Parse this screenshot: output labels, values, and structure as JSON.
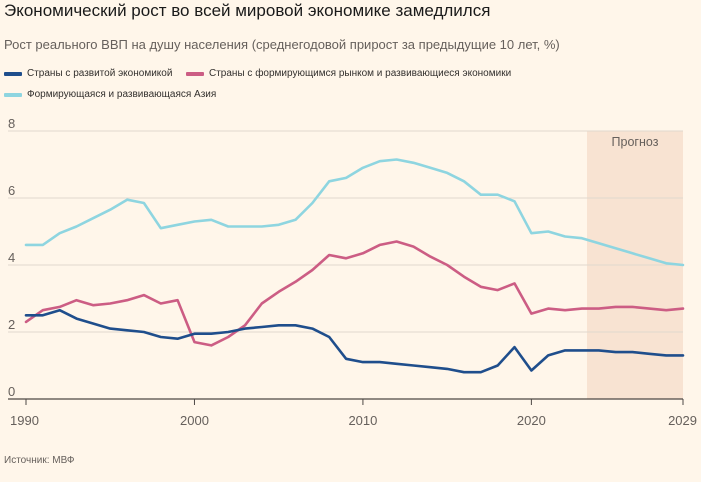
{
  "title": "Экономический рост во всей мировой экономике замедлился",
  "subtitle": "Рост реального ВВП на душу населения (среднегодовой прирост за предыдущие 10 лет, %)",
  "source": "Источник: МВФ",
  "colors": {
    "advanced": "#1f4e8c",
    "emerging": "#cc5d84",
    "asia": "#8ed5e0",
    "forecast_band": "#f8e3d2",
    "grid": "#e1d8cf"
  },
  "chart_data": {
    "type": "line",
    "title": "Экономический рост во всей мировой экономике замедлился",
    "ylabel": "Рост реального ВВП на душу населения (среднегодовой прирост за предыдущие 10 лет, %)",
    "xlabel": "",
    "xlim": [
      1990,
      2029
    ],
    "ylim": [
      0,
      8
    ],
    "x_ticks": [
      1990,
      2000,
      2010,
      2020,
      2029
    ],
    "y_ticks": [
      0,
      2,
      4,
      6,
      8
    ],
    "grid": true,
    "forecast": {
      "label": "Прогноз",
      "start": 2023.3,
      "end": 2029
    },
    "x": [
      1990,
      1991,
      1992,
      1993,
      1994,
      1995,
      1996,
      1997,
      1998,
      1999,
      2000,
      2001,
      2002,
      2003,
      2004,
      2005,
      2006,
      2007,
      2008,
      2009,
      2010,
      2011,
      2012,
      2013,
      2014,
      2015,
      2016,
      2017,
      2018,
      2019,
      2020,
      2021,
      2022,
      2023,
      2024,
      2025,
      2026,
      2027,
      2028,
      2029
    ],
    "series": [
      {
        "name": "Страны с развитой экономикой",
        "key": "advanced",
        "values": [
          2.5,
          2.5,
          2.65,
          2.4,
          2.25,
          2.1,
          2.05,
          2.0,
          1.85,
          1.8,
          1.95,
          1.95,
          2.0,
          2.1,
          2.15,
          2.2,
          2.2,
          2.1,
          1.85,
          1.2,
          1.1,
          1.1,
          1.05,
          1.0,
          0.95,
          0.9,
          0.8,
          0.8,
          1.0,
          1.55,
          0.85,
          1.3,
          1.45,
          1.45,
          1.45,
          1.4,
          1.4,
          1.35,
          1.3,
          1.3
        ]
      },
      {
        "name": "Страны с формирующимся рынком и развивающиеся экономики",
        "key": "emerging",
        "values": [
          2.3,
          2.65,
          2.75,
          2.95,
          2.8,
          2.85,
          2.95,
          3.1,
          2.85,
          2.95,
          1.7,
          1.6,
          1.85,
          2.2,
          2.85,
          3.2,
          3.5,
          3.85,
          4.3,
          4.2,
          4.35,
          4.6,
          4.7,
          4.55,
          4.25,
          4.0,
          3.65,
          3.35,
          3.25,
          3.45,
          2.55,
          2.7,
          2.65,
          2.7,
          2.7,
          2.75,
          2.75,
          2.7,
          2.65,
          2.7
        ]
      },
      {
        "name": "Формирующаяся и развивающаяся Азия",
        "key": "asia",
        "values": [
          4.6,
          4.6,
          4.95,
          5.15,
          5.4,
          5.65,
          5.95,
          5.85,
          5.1,
          5.2,
          5.3,
          5.35,
          5.15,
          5.15,
          5.15,
          5.2,
          5.35,
          5.85,
          6.5,
          6.6,
          6.9,
          7.1,
          7.15,
          7.05,
          6.9,
          6.75,
          6.5,
          6.1,
          6.1,
          5.9,
          4.95,
          5.0,
          4.85,
          4.8,
          4.65,
          4.5,
          4.35,
          4.2,
          4.05,
          4.0
        ]
      }
    ]
  }
}
